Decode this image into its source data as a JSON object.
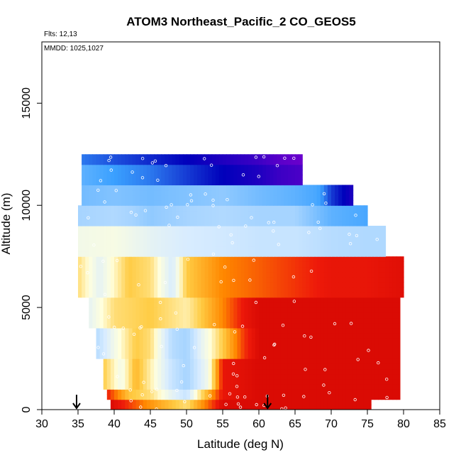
{
  "chart_data": {
    "type": "heatmap",
    "title": "ATOM3 Northeast_Pacific_2 CO_GEOS5",
    "annotations": {
      "flights": "Flts: 12,13",
      "dates": "MMDD: 1025,1027"
    },
    "xlabel": "Latitude (deg N)",
    "ylabel": "Altitude (m)",
    "xlim": [
      30,
      85
    ],
    "ylim": [
      0,
      18000
    ],
    "x_ticks": [
      30,
      35,
      40,
      45,
      50,
      55,
      60,
      65,
      70,
      75,
      80,
      85
    ],
    "x_tick_labels": [
      "30",
      "35",
      "40",
      "45",
      "50",
      "55",
      "60",
      "65",
      "70",
      "75",
      "80",
      "85"
    ],
    "y_ticks": [
      0,
      5000,
      10000,
      15000
    ],
    "y_tick_labels": [
      "0",
      "5000",
      "10000",
      "15000"
    ],
    "grid": false,
    "legend": "none",
    "markers": {
      "type": "arrow-down",
      "latitudes": [
        34.8,
        61.2
      ]
    },
    "colors": {
      "very_high": "#cc0000",
      "high": "#ee1a0a",
      "mid_high": "#ff8800",
      "mid": "#ffcc44",
      "neutral": "#ffffdd",
      "low_mid": "#d8ecff",
      "low": "#a6d4ff",
      "lower": "#3aa0ff",
      "lowest": "#0000bb",
      "min": "#6a00cc"
    },
    "altitude_bands": [
      {
        "alt_min": 0,
        "alt_max": 500,
        "lat_points": [
          39.5,
          45,
          50,
          55,
          60,
          65,
          70,
          75.5
        ],
        "values": [
          0.95,
          0.72,
          0.55,
          0.95,
          0.95,
          0.95,
          0.95,
          0.95
        ]
      },
      {
        "alt_min": 500,
        "alt_max": 1000,
        "lat_points": [
          39,
          42,
          45,
          48,
          50,
          52,
          55,
          60,
          65,
          70,
          75,
          79.5
        ],
        "values": [
          0.88,
          0.62,
          0.55,
          0.35,
          0.25,
          0.55,
          0.9,
          0.95,
          0.95,
          0.95,
          0.95,
          0.95
        ]
      },
      {
        "alt_min": 1000,
        "alt_max": 2500,
        "lat_points": [
          38.5,
          41,
          43,
          45,
          48,
          50,
          53,
          55,
          60,
          65,
          70,
          75,
          79.5
        ],
        "values": [
          0.6,
          0.4,
          0.65,
          0.5,
          0.25,
          0.15,
          0.4,
          0.9,
          0.95,
          0.95,
          0.95,
          0.95,
          0.95
        ]
      },
      {
        "alt_min": 2500,
        "alt_max": 4000,
        "lat_points": [
          37.5,
          40,
          43,
          45,
          48,
          50,
          52,
          55,
          58,
          60,
          65,
          70,
          75,
          79.5
        ],
        "values": [
          0.2,
          0.4,
          0.6,
          0.55,
          0.2,
          0.15,
          0.35,
          0.6,
          0.85,
          0.95,
          0.95,
          0.95,
          0.95,
          0.95
        ]
      },
      {
        "alt_min": 4000,
        "alt_max": 5500,
        "lat_points": [
          36.5,
          40,
          45,
          50,
          55,
          58,
          60,
          65,
          70,
          75,
          79.5
        ],
        "values": [
          0.35,
          0.55,
          0.6,
          0.5,
          0.75,
          0.9,
          0.95,
          0.95,
          0.95,
          0.95,
          0.95
        ]
      },
      {
        "alt_min": 5500,
        "alt_max": 7500,
        "lat_points": [
          35,
          38,
          42,
          45,
          48,
          50,
          55,
          60,
          65,
          70,
          75,
          80
        ],
        "values": [
          0.55,
          0.35,
          0.6,
          0.55,
          0.3,
          0.6,
          0.75,
          0.8,
          0.85,
          0.9,
          0.9,
          0.93
        ]
      },
      {
        "alt_min": 7500,
        "alt_max": 9000,
        "lat_points": [
          35,
          40,
          45,
          50,
          55,
          60,
          65,
          70,
          75,
          77.5
        ],
        "values": [
          0.4,
          0.42,
          0.35,
          0.3,
          0.28,
          0.25,
          0.25,
          0.2,
          0.18,
          0.18
        ]
      },
      {
        "alt_min": 9000,
        "alt_max": 10000,
        "lat_points": [
          35,
          40,
          45,
          50,
          55,
          60,
          65,
          70,
          75
        ],
        "values": [
          0.15,
          0.18,
          0.12,
          0.15,
          0.18,
          0.15,
          0.15,
          0.05,
          0.02
        ]
      },
      {
        "alt_min": 10000,
        "alt_max": 11000,
        "lat_points": [
          35.5,
          40,
          45,
          50,
          55,
          60,
          65,
          68,
          70,
          73
        ],
        "values": [
          0.08,
          0.1,
          0.08,
          0.1,
          0.12,
          0.08,
          0.05,
          0.02,
          -0.05,
          -0.1
        ]
      },
      {
        "alt_min": 11000,
        "alt_max": 12000,
        "lat_points": [
          35.5,
          40,
          45,
          50,
          55,
          60,
          63,
          66
        ],
        "values": [
          0.05,
          0.0,
          -0.02,
          -0.05,
          -0.08,
          -0.1,
          -0.12,
          -0.13
        ]
      },
      {
        "alt_min": 12000,
        "alt_max": 12500,
        "lat_points": [
          35.5,
          40,
          45,
          50,
          55,
          60,
          63,
          66
        ],
        "values": [
          -0.02,
          -0.04,
          -0.06,
          -0.08,
          -0.1,
          -0.12,
          -0.14,
          -0.15
        ]
      }
    ]
  }
}
